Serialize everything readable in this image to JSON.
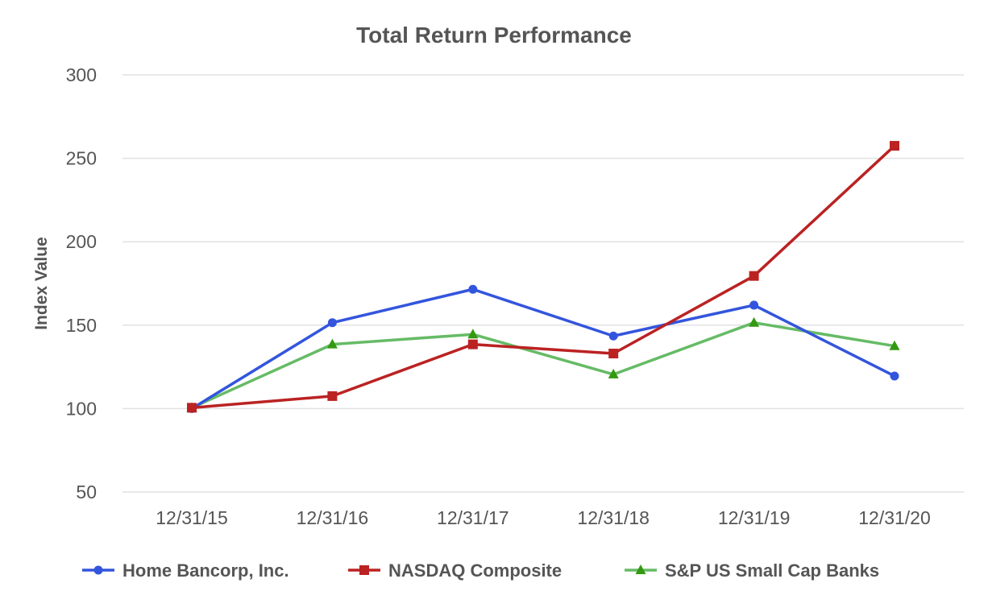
{
  "chart_data": {
    "type": "line",
    "title": "Total Return Performance",
    "xlabel": "",
    "ylabel": "Index Value",
    "categories": [
      "12/31/15",
      "12/31/16",
      "12/31/17",
      "12/31/18",
      "12/31/19",
      "12/31/20"
    ],
    "yticks": [
      50,
      100,
      150,
      200,
      250,
      300
    ],
    "ylim": [
      50,
      300
    ],
    "grid": true,
    "legend_position": "bottom",
    "series": [
      {
        "name": "Home Bancorp, Inc.",
        "color": "#3355dd",
        "marker": "circle",
        "values": [
          100,
          151.5,
          171.5,
          143.5,
          162,
          119.5
        ]
      },
      {
        "name": "NASDAQ Composite",
        "color": "#bb2222",
        "marker": "square",
        "values": [
          100.5,
          107.5,
          138.5,
          133,
          179.5,
          257.5
        ]
      },
      {
        "name": "S&P US Small Cap Banks",
        "color": "#66bb66",
        "marker_color": "#339911",
        "marker": "triangle",
        "values": [
          100.5,
          138.5,
          144.5,
          120.5,
          151.5,
          137.5
        ]
      }
    ]
  }
}
